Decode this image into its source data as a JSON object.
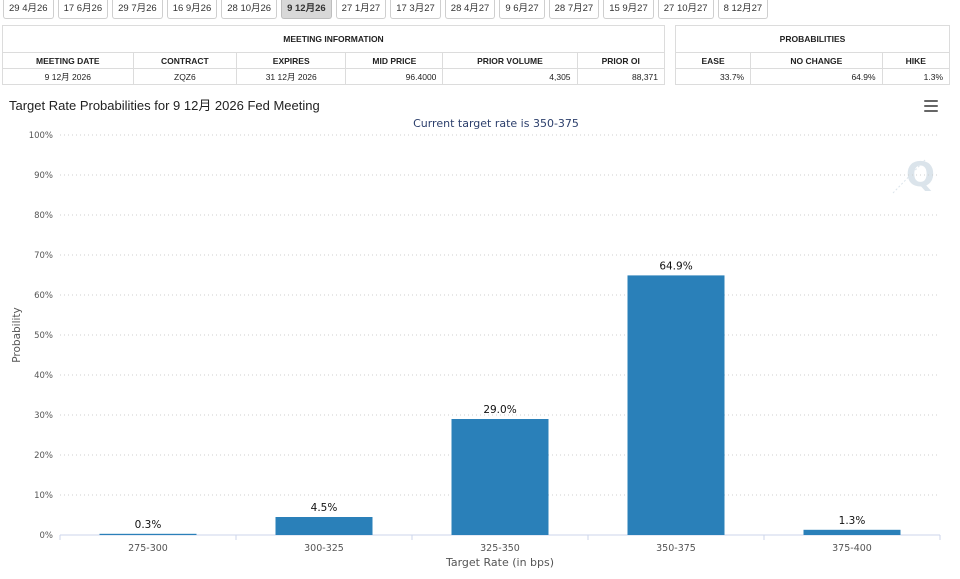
{
  "tabs": [
    {
      "label": "29 4月26",
      "active": false
    },
    {
      "label": "17 6月26",
      "active": false
    },
    {
      "label": "29 7月26",
      "active": false
    },
    {
      "label": "16 9月26",
      "active": false
    },
    {
      "label": "28 10月26",
      "active": false
    },
    {
      "label": "9 12月26",
      "active": true
    },
    {
      "label": "27 1月27",
      "active": false
    },
    {
      "label": "17 3月27",
      "active": false
    },
    {
      "label": "28 4月27",
      "active": false
    },
    {
      "label": "9 6月27",
      "active": false
    },
    {
      "label": "28 7月27",
      "active": false
    },
    {
      "label": "15 9月27",
      "active": false
    },
    {
      "label": "27 10月27",
      "active": false
    },
    {
      "label": "8 12月27",
      "active": false
    }
  ],
  "meeting_info": {
    "group_title": "MEETING INFORMATION",
    "headers": [
      "MEETING DATE",
      "CONTRACT",
      "EXPIRES",
      "MID PRICE",
      "PRIOR VOLUME",
      "PRIOR OI"
    ],
    "values": [
      "9 12月 2026",
      "ZQZ6",
      "31 12月 2026",
      "96.4000",
      "4,305",
      "88,371"
    ]
  },
  "probabilities": {
    "group_title": "PROBABILITIES",
    "headers": [
      "EASE",
      "NO CHANGE",
      "HIKE"
    ],
    "values": [
      "33.7%",
      "64.9%",
      "1.3%"
    ]
  },
  "chart_title": "Target Rate Probabilities for 9 12月 2026 Fed Meeting",
  "chart_data": {
    "type": "bar",
    "subtitle": "Current target rate is 350-375",
    "categories": [
      "275-300",
      "300-325",
      "325-350",
      "350-375",
      "375-400"
    ],
    "values": [
      0.3,
      4.5,
      29.0,
      64.9,
      1.3
    ],
    "data_labels": [
      "0.3%",
      "4.5%",
      "29.0%",
      "64.9%",
      "1.3%"
    ],
    "xlabel": "Target Rate (in bps)",
    "ylabel": "Probability",
    "ylim": [
      0,
      100
    ],
    "yticks": [
      "0%",
      "10%",
      "20%",
      "30%",
      "40%",
      "50%",
      "60%",
      "70%",
      "80%",
      "90%",
      "100%"
    ],
    "grid": true,
    "bar_color": "#2a80b9"
  }
}
